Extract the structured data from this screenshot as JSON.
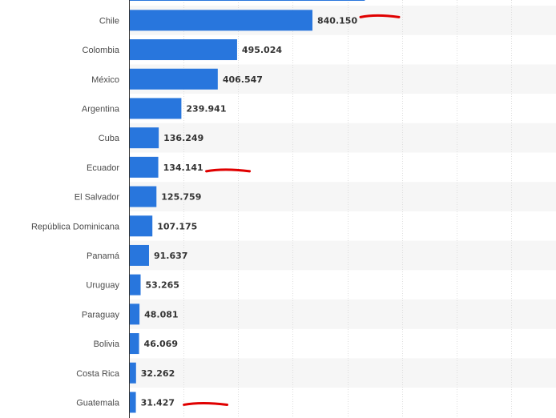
{
  "chart_data": {
    "type": "bar",
    "orientation": "horizontal",
    "categories": [
      "Chile",
      "Colombia",
      "México",
      "Argentina",
      "Cuba",
      "Ecuador",
      "El Salvador",
      "República Dominicana",
      "Panamá",
      "Uruguay",
      "Paraguay",
      "Bolivia",
      "Costa Rica",
      "Guatemala"
    ],
    "values": [
      840150,
      495024,
      406547,
      239941,
      136249,
      134141,
      125759,
      107175,
      91637,
      53265,
      48081,
      46069,
      32262,
      31427
    ],
    "value_labels": [
      "840.150",
      "495.024",
      "406.547",
      "239.941",
      "136.249",
      "134.141",
      "125.759",
      "107.175",
      "91.637",
      "53.265",
      "48.081",
      "46.069",
      "32.262",
      "31.427"
    ],
    "cut_off_bar_above": {
      "value": 1080000
    },
    "xlim": [
      0,
      2000000
    ],
    "grid_interval": 250000,
    "grid": true,
    "legend": "none",
    "title": "",
    "xlabel": "",
    "ylabel": "",
    "colors": {
      "bar": "#2876dd",
      "stripe": "#f6f6f6",
      "grid": "#dddddd",
      "axis": "#333333",
      "annotation": "#e00000"
    },
    "annotations": [
      {
        "type": "underline-stroke",
        "category": "Chile"
      },
      {
        "type": "underline-stroke",
        "category": "Ecuador"
      },
      {
        "type": "underline-stroke",
        "category": "Guatemala"
      }
    ]
  }
}
